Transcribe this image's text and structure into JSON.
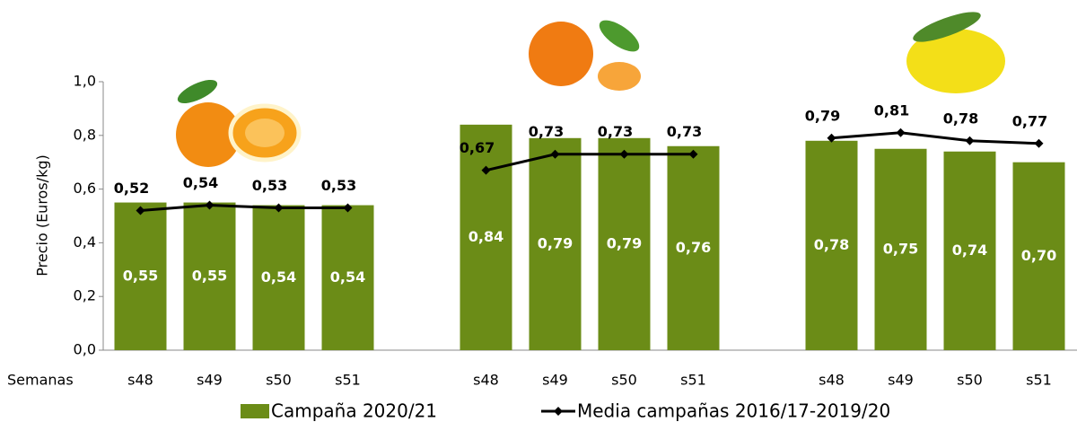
{
  "chart_data": {
    "type": "bar",
    "y_label": "Precio  (Euros/kg)",
    "x_label": "Semanas",
    "categories": [
      "s48",
      "s49",
      "s50",
      "s51",
      null,
      "s48",
      "s49",
      "s50",
      "s51",
      null,
      "s48",
      "s49",
      "s50",
      "s51"
    ],
    "series": [
      {
        "name": "Campaña 2020/21",
        "type": "bar",
        "color": "#6b8c17",
        "values": [
          0.55,
          0.55,
          0.54,
          0.54,
          null,
          0.84,
          0.79,
          0.79,
          0.76,
          null,
          0.78,
          0.75,
          0.74,
          0.7
        ],
        "value_labels": [
          "0,55",
          "0,55",
          "0,54",
          "0,54",
          null,
          "0,84",
          "0,79",
          "0,79",
          "0,76",
          null,
          "0,78",
          "0,75",
          "0,74",
          "0,70"
        ]
      },
      {
        "name": "Media campañas 2016/17-2019/20",
        "type": "line",
        "color": "#000000",
        "values": [
          0.52,
          0.54,
          0.53,
          0.53,
          null,
          0.67,
          0.73,
          0.73,
          0.73,
          null,
          0.79,
          0.81,
          0.78,
          0.77
        ],
        "value_labels": [
          "0,52",
          "0,54",
          "0,53",
          "0,53",
          null,
          "0,67",
          "0,73",
          "0,73",
          "0,73",
          null,
          "0,79",
          "0,81",
          "0,78",
          "0,77"
        ]
      }
    ],
    "ylim": [
      0,
      1
    ],
    "yticks": [
      {
        "value": 0,
        "label": "0,0"
      },
      {
        "value": 0.2,
        "label": "0,2"
      },
      {
        "value": 0.4,
        "label": "0,4"
      },
      {
        "value": 0.6,
        "label": "0,6"
      },
      {
        "value": 0.8,
        "label": "0,8"
      },
      {
        "value": 1,
        "label": "1,0"
      }
    ],
    "grid": false
  }
}
